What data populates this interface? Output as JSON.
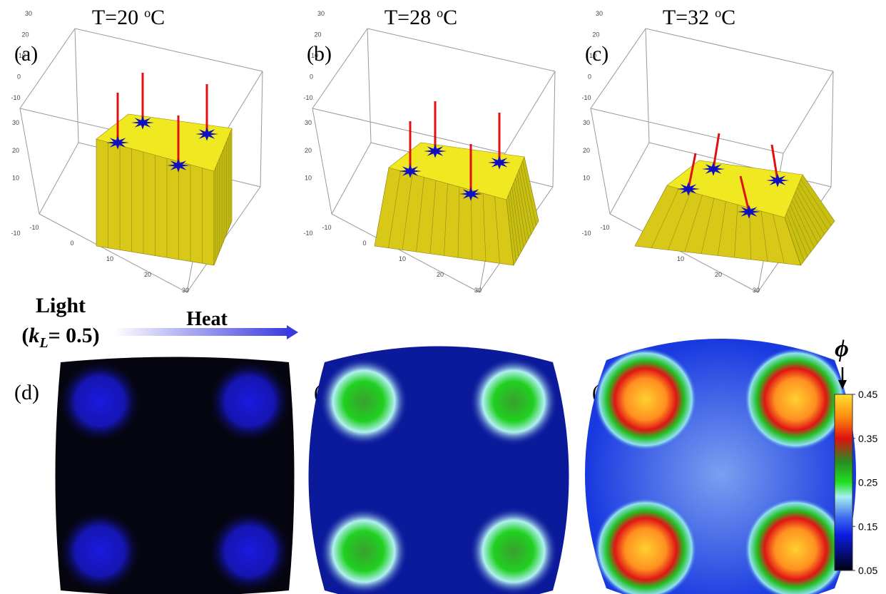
{
  "figure": {
    "panels_top": [
      {
        "title": {
          "text": "T=20",
          "sup": "o",
          "unit": "C"
        },
        "label": "(a)",
        "axes": {
          "back": [
            30,
            20,
            10,
            0,
            -10
          ],
          "vertical": [
            30,
            20,
            10,
            -10
          ],
          "front": [
            -10,
            0,
            10,
            20,
            30
          ]
        }
      },
      {
        "title": {
          "text": "T=28",
          "sup": "o",
          "unit": "C"
        },
        "label": "(b)",
        "axes": {
          "back": [
            30,
            20,
            10,
            0,
            -10
          ],
          "vertical": [
            30,
            20,
            10,
            -10
          ],
          "front": [
            -10,
            0,
            10,
            20,
            30
          ]
        }
      },
      {
        "title": {
          "text": "T=32",
          "sup": "o",
          "unit": "C"
        },
        "label": "(c)",
        "axes": {
          "back": [
            30,
            20,
            10,
            0,
            -10
          ],
          "vertical": [
            30,
            20,
            10,
            -10
          ],
          "front": [
            -10,
            0,
            10,
            20,
            30
          ]
        }
      }
    ],
    "annotation": {
      "light": "Light",
      "k_open": "(",
      "k_symbol": "k",
      "k_sub": "L",
      "k_rest": "= 0.5)",
      "heat": "Heat"
    },
    "panels_bottom": [
      {
        "label": "(d)"
      },
      {
        "label": "(e)"
      },
      {
        "label": "(f)"
      }
    ],
    "colorbar": {
      "symbol": "ϕ",
      "lim": [
        0.05,
        0.45
      ],
      "ticks": [
        0.05,
        0.15,
        0.25,
        0.35,
        0.45
      ]
    }
  }
}
